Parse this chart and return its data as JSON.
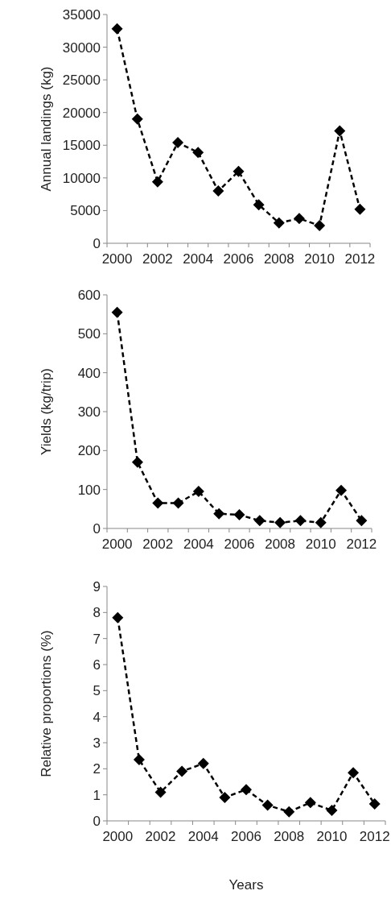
{
  "chart_data": [
    {
      "type": "line",
      "ylabel": "Annual landings (kg)",
      "categories": [
        "2000",
        null,
        "2002",
        null,
        "2004",
        null,
        "2006",
        null,
        "2008",
        null,
        "2010",
        null,
        "2012"
      ],
      "ylim": [
        0,
        35000
      ],
      "yticks": [
        0,
        5000,
        10000,
        15000,
        20000,
        25000,
        30000,
        35000
      ],
      "grid": false,
      "marker": "diamond",
      "line_style": "dashed",
      "series": [
        {
          "color": "#000000",
          "values": [
            32800,
            19000,
            9400,
            15400,
            13900,
            8000,
            11000,
            5900,
            3100,
            3800,
            2700,
            17200,
            5200
          ]
        }
      ]
    },
    {
      "type": "line",
      "ylabel": "Yields (kg/trip)",
      "categories": [
        "2000",
        null,
        "2002",
        null,
        "2004",
        null,
        "2006",
        null,
        "2008",
        null,
        "2010",
        null,
        "2012"
      ],
      "ylim": [
        0,
        600
      ],
      "yticks": [
        0,
        100,
        200,
        300,
        400,
        500,
        600
      ],
      "grid": false,
      "marker": "diamond",
      "line_style": "dashed",
      "series": [
        {
          "color": "#000000",
          "values": [
            555,
            170,
            65,
            65,
            95,
            38,
            35,
            20,
            15,
            20,
            15,
            98,
            20
          ]
        }
      ]
    },
    {
      "type": "line",
      "ylabel": "Relative proportions (%)",
      "xlabel": "Years",
      "categories": [
        "2000",
        null,
        "2002",
        null,
        "2004",
        null,
        "2006",
        null,
        "2008",
        null,
        "2010",
        null,
        "2012"
      ],
      "ylim": [
        0,
        9
      ],
      "yticks": [
        0,
        1,
        2,
        3,
        4,
        5,
        6,
        7,
        8,
        9
      ],
      "grid": false,
      "marker": "diamond",
      "line_style": "dashed",
      "series": [
        {
          "color": "#000000",
          "values": [
            7.8,
            2.35,
            1.1,
            1.9,
            2.2,
            0.9,
            1.2,
            0.6,
            0.35,
            0.7,
            0.4,
            1.85,
            0.65
          ]
        }
      ]
    }
  ]
}
